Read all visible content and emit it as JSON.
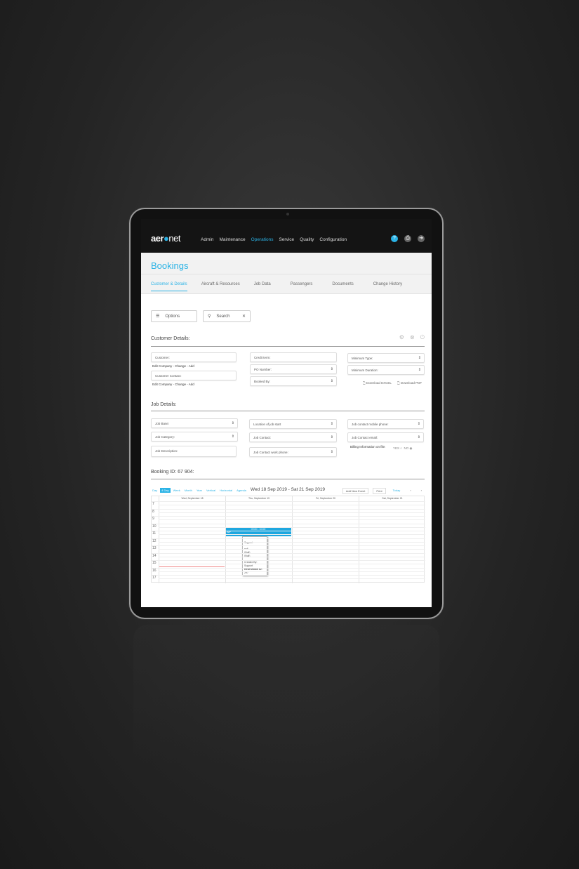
{
  "app": {
    "logo": "aeronet",
    "accent": "#2bb3e6"
  },
  "nav": [
    "Admin",
    "Maintenance",
    "Operations",
    "Service",
    "Quality",
    "Configuration"
  ],
  "nav_active": "Operations",
  "header_icons": [
    "help-icon",
    "print-icon",
    "logout-icon"
  ],
  "page": {
    "title": "Bookings"
  },
  "tabs": [
    "Customer & Details",
    "Aircraft & Resources",
    "Job Data",
    "Passengers",
    "Documents",
    "Change History"
  ],
  "toolbar": {
    "options": "Options",
    "search": "Search"
  },
  "customer": {
    "heading": "Customer Details:",
    "customer": "Customer:",
    "edit1": "Edit Company - Change - Add",
    "contact": "Customer Contact:",
    "edit2": "Edit Company - Change - Add",
    "credit": "Credit term:",
    "po": "PO Number:",
    "booked": "Booked By:",
    "min_type": "Minimum Type:",
    "min_dur": "Minimum Duration:",
    "excel": "Download EXCEL",
    "pdf": "Download PDF"
  },
  "job": {
    "heading": "Job Details:",
    "base": "Job Base:",
    "category": "Job Category:",
    "description": "Job Description:",
    "location": "Location of job start",
    "contact": "Job Contact:",
    "work_phone": "Job Contact work phone:",
    "mobile": "Job contact mobile phone:",
    "email": "Job Contact email:",
    "billing": "Billing Information on file:",
    "yes": "YES",
    "no": "NO",
    "billing_value": "NO"
  },
  "booking": {
    "heading": "Booking ID: 67 904:"
  },
  "calendar": {
    "views": [
      "Day",
      "4 Day",
      "Week",
      "Month",
      "Year",
      "Vertical",
      "Horizontal",
      "Agenda"
    ],
    "active_view": "4 Day",
    "range": "Wed 18 Sep 2019 - Sat 21 Sep 2019",
    "add": "Add New Event",
    "print": "Print",
    "today": "Today",
    "days": [
      "Wed, September 18",
      "Thu, September 19",
      "Fri, September 20",
      "Sat, September 21"
    ],
    "hours": [
      "7",
      "8",
      "9",
      "10",
      "11",
      "12",
      "13",
      "14",
      "15",
      "16",
      "17"
    ],
    "event": {
      "time": "09:00 - 10:00",
      "title": "IMP"
    },
    "popup": [
      "Support",
      "null",
      "(Null)",
      "(Null)",
      "Created By: Support"
    ],
    "reservation_label": "Reservation ID:",
    "reservation_id": "297"
  }
}
